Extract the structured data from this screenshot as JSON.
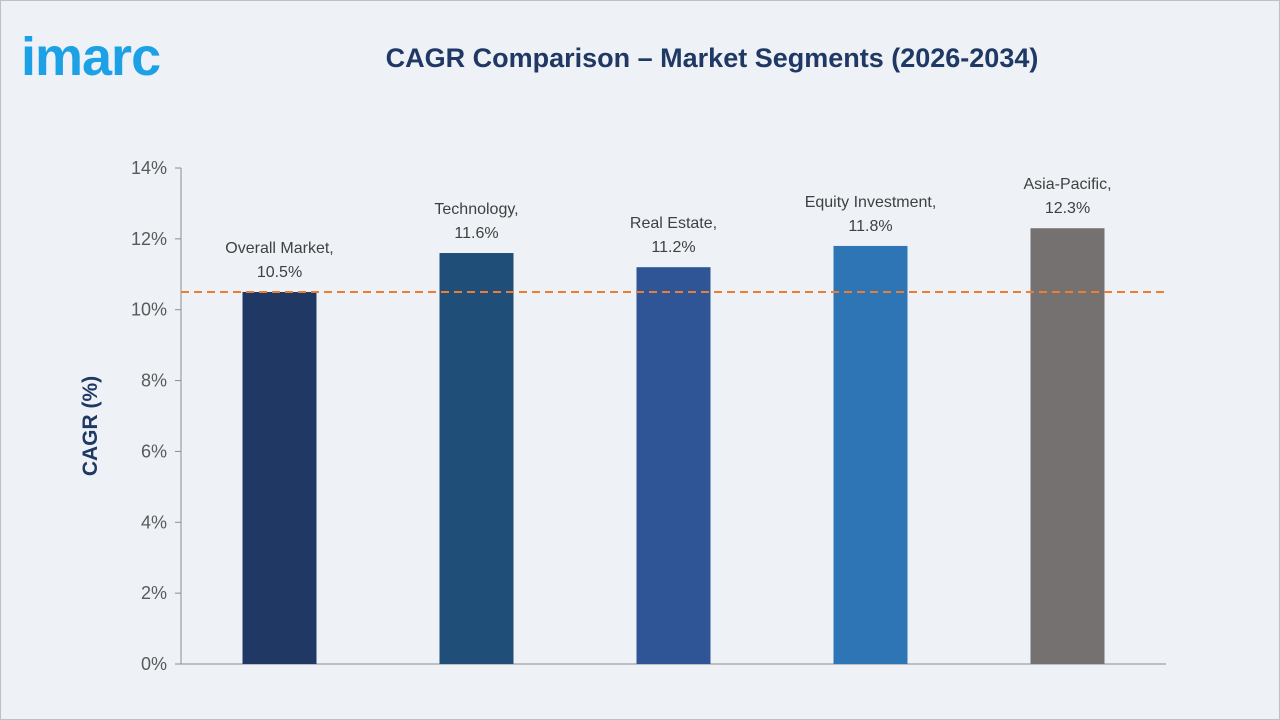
{
  "brand": {
    "logo_text": "imarc",
    "logo_color": "#1da1e6"
  },
  "chart_data": {
    "type": "bar",
    "title": "CAGR Comparison – Market Segments (2026-2034)",
    "xlabel": "",
    "ylabel": "CAGR (%)",
    "ylim": [
      0,
      14
    ],
    "yticks": [
      0,
      2,
      4,
      6,
      8,
      10,
      12,
      14
    ],
    "ytick_suffix": "%",
    "categories": [
      "Overall Market",
      "Technology",
      "Real Estate",
      "Equity Investment",
      "Asia-Pacific"
    ],
    "values": [
      10.5,
      11.6,
      11.2,
      11.8,
      12.3
    ],
    "labels": [
      "Overall Market,",
      "Technology,",
      "Real Estate,",
      "Equity Investment,",
      "Asia-Pacific,"
    ],
    "value_labels": [
      "10.5%",
      "11.6%",
      "11.2%",
      "11.8%",
      "12.3%"
    ],
    "colors": [
      "#203864",
      "#1f4e79",
      "#2f5597",
      "#2e75b6",
      "#767171"
    ],
    "reference_line": {
      "value": 10.5,
      "color": "#ed7d31",
      "style": "dashed"
    },
    "grid": false,
    "legend": "none"
  }
}
